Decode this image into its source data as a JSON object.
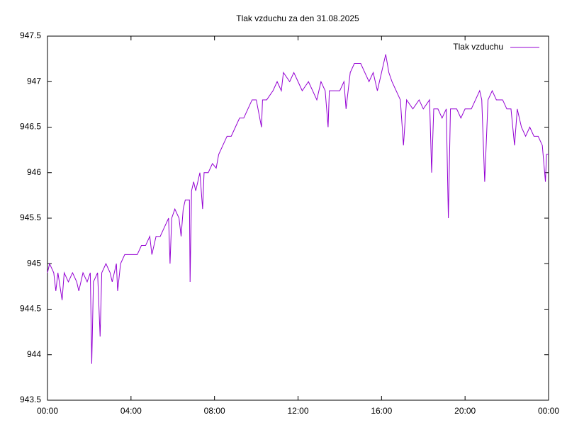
{
  "chart_data": {
    "type": "line",
    "title": "Tlak vzduchu za den 31.08.2025",
    "x": [
      0,
      0.1,
      0.3,
      0.4,
      0.5,
      0.7,
      0.8,
      1,
      1.2,
      1.4,
      1.5,
      1.7,
      1.9,
      2.05,
      2.12,
      2.2,
      2.4,
      2.52,
      2.6,
      2.8,
      3,
      3.1,
      3.3,
      3.36,
      3.5,
      3.7,
      4,
      4.3,
      4.5,
      4.7,
      4.9,
      5,
      5.2,
      5.4,
      5.6,
      5.8,
      5.87,
      5.95,
      6.1,
      6.3,
      6.4,
      6.5,
      6.6,
      6.8,
      6.83,
      6.9,
      7,
      7.1,
      7.3,
      7.43,
      7.5,
      7.7,
      7.9,
      8.08,
      8.2,
      8.4,
      8.6,
      8.8,
      9,
      9.2,
      9.4,
      9.6,
      9.8,
      10,
      10.25,
      10.3,
      10.5,
      10.8,
      11,
      11.2,
      11.3,
      11.6,
      11.8,
      12,
      12.2,
      12.5,
      12.7,
      12.9,
      13.1,
      13.3,
      13.44,
      13.5,
      13.7,
      14,
      14.2,
      14.3,
      14.5,
      14.7,
      15,
      15.2,
      15.4,
      15.6,
      15.8,
      16,
      16.2,
      16.35,
      16.5,
      16.7,
      16.9,
      17.05,
      17.2,
      17.5,
      17.8,
      18,
      18.3,
      18.4,
      18.5,
      18.7,
      18.9,
      19.1,
      19.2,
      19.3,
      19.6,
      19.8,
      20,
      20.3,
      20.5,
      20.7,
      20.8,
      20.94,
      21.1,
      21.3,
      21.5,
      21.8,
      22,
      22.2,
      22.37,
      22.5,
      22.7,
      22.9,
      23.1,
      23.3,
      23.5,
      23.7,
      23.85,
      23.9,
      24
    ],
    "series": [
      {
        "name": "Tlak vzduchu",
        "color": "#9400d3",
        "values": [
          944.9,
          945,
          944.9,
          944.7,
          944.9,
          944.6,
          944.9,
          944.8,
          944.9,
          944.8,
          944.7,
          944.9,
          944.8,
          944.9,
          943.9,
          944.8,
          944.9,
          944.2,
          944.9,
          945,
          944.9,
          944.8,
          945,
          944.7,
          945,
          945.1,
          945.1,
          945.1,
          945.2,
          945.2,
          945.3,
          945.1,
          945.3,
          945.3,
          945.4,
          945.5,
          945,
          945.5,
          945.6,
          945.5,
          945.3,
          945.6,
          945.7,
          945.7,
          944.8,
          945.8,
          945.9,
          945.8,
          946,
          945.6,
          946,
          946,
          946.1,
          946.05,
          946.2,
          946.3,
          946.4,
          946.4,
          946.5,
          946.6,
          946.6,
          946.7,
          946.8,
          946.8,
          946.5,
          946.8,
          946.8,
          946.9,
          947,
          946.9,
          947.1,
          947,
          947.1,
          947,
          946.9,
          947,
          946.9,
          946.8,
          947,
          946.9,
          946.5,
          946.9,
          946.9,
          946.9,
          947,
          946.7,
          947.1,
          947.2,
          947.2,
          947.1,
          947,
          947.1,
          946.9,
          947.1,
          947.3,
          947.1,
          947,
          946.9,
          946.8,
          946.3,
          946.8,
          946.7,
          946.8,
          946.7,
          946.8,
          946,
          946.7,
          946.7,
          946.6,
          946.7,
          945.5,
          946.7,
          946.7,
          946.6,
          946.7,
          946.7,
          946.8,
          946.9,
          946.8,
          945.9,
          946.8,
          946.9,
          946.8,
          946.8,
          946.7,
          946.7,
          946.3,
          946.7,
          946.5,
          946.4,
          946.5,
          946.4,
          946.4,
          946.3,
          945.9,
          946.2,
          946.2
        ]
      }
    ],
    "xlim": [
      0,
      24
    ],
    "xticks": [
      {
        "value": 0,
        "label": "00:00"
      },
      {
        "value": 4,
        "label": "04:00"
      },
      {
        "value": 8,
        "label": "08:00"
      },
      {
        "value": 12,
        "label": "12:00"
      },
      {
        "value": 16,
        "label": "16:00"
      },
      {
        "value": 20,
        "label": "20:00"
      },
      {
        "value": 24,
        "label": "00:00"
      }
    ],
    "ylim": [
      943.5,
      947.5
    ],
    "yticks": [
      943.5,
      944,
      944.5,
      945,
      945.5,
      946,
      946.5,
      947,
      947.5
    ],
    "legend": "top-right"
  }
}
